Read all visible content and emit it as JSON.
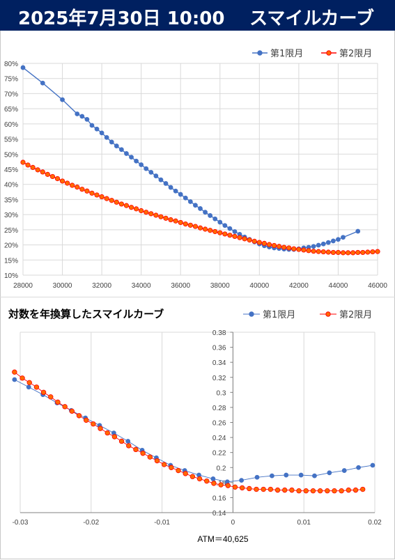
{
  "header": {
    "date": "2025年7月30日 10:00",
    "title": "スマイルカーブ"
  },
  "colors": {
    "header_bg": "#002060",
    "series1": "#4472C4",
    "series2": "#FF0000",
    "series2_fill": "#FF6A00",
    "grid": "#D9D9D9"
  },
  "chart_data": [
    {
      "type": "line",
      "title": "",
      "xlabel": "",
      "ylabel": "",
      "xlim": [
        28000,
        46000
      ],
      "ylim": [
        0.1,
        0.8
      ],
      "x_ticks": [
        28000,
        30000,
        32000,
        34000,
        36000,
        38000,
        40000,
        42000,
        44000,
        46000
      ],
      "y_ticks": [
        "10%",
        "15%",
        "20%",
        "25%",
        "30%",
        "35%",
        "40%",
        "45%",
        "50%",
        "55%",
        "60%",
        "65%",
        "70%",
        "75%",
        "80%"
      ],
      "grid": true,
      "legend": "top-right",
      "series": [
        {
          "name": "第1限月",
          "points": [
            [
              28000,
              0.786
            ],
            [
              29000,
              0.735
            ],
            [
              30000,
              0.68
            ],
            [
              30750,
              0.633
            ],
            [
              31000,
              0.625
            ],
            [
              31250,
              0.615
            ],
            [
              31500,
              0.595
            ],
            [
              31750,
              0.583
            ],
            [
              32000,
              0.57
            ],
            [
              32250,
              0.555
            ],
            [
              32500,
              0.54
            ],
            [
              32750,
              0.527
            ],
            [
              33000,
              0.515
            ],
            [
              33250,
              0.502
            ],
            [
              33500,
              0.49
            ],
            [
              33750,
              0.477
            ],
            [
              34000,
              0.465
            ],
            [
              34250,
              0.452
            ],
            [
              34500,
              0.44
            ],
            [
              34750,
              0.428
            ],
            [
              35000,
              0.415
            ],
            [
              35250,
              0.403
            ],
            [
              35500,
              0.39
            ],
            [
              35750,
              0.378
            ],
            [
              36000,
              0.367
            ],
            [
              36250,
              0.355
            ],
            [
              36500,
              0.343
            ],
            [
              36750,
              0.331
            ],
            [
              37000,
              0.32
            ],
            [
              37250,
              0.308
            ],
            [
              37500,
              0.297
            ],
            [
              37750,
              0.286
            ],
            [
              38000,
              0.275
            ],
            [
              38250,
              0.264
            ],
            [
              38500,
              0.254
            ],
            [
              38750,
              0.244
            ],
            [
              39000,
              0.235
            ],
            [
              39250,
              0.226
            ],
            [
              39500,
              0.218
            ],
            [
              39750,
              0.21
            ],
            [
              40000,
              0.203
            ],
            [
              40250,
              0.197
            ],
            [
              40500,
              0.193
            ],
            [
              40750,
              0.19
            ],
            [
              41000,
              0.188
            ],
            [
              41250,
              0.186
            ],
            [
              41500,
              0.185
            ],
            [
              41750,
              0.185
            ],
            [
              42000,
              0.187
            ],
            [
              42250,
              0.19
            ],
            [
              42500,
              0.192
            ],
            [
              42750,
              0.195
            ],
            [
              43000,
              0.199
            ],
            [
              43250,
              0.203
            ],
            [
              43500,
              0.208
            ],
            [
              43750,
              0.213
            ],
            [
              44000,
              0.218
            ],
            [
              44250,
              0.225
            ],
            [
              45000,
              0.245
            ]
          ]
        },
        {
          "name": "第2限月",
          "points": [
            [
              28000,
              0.473
            ],
            [
              28250,
              0.464
            ],
            [
              28500,
              0.456
            ],
            [
              28750,
              0.448
            ],
            [
              29000,
              0.441
            ],
            [
              29250,
              0.433
            ],
            [
              29500,
              0.426
            ],
            [
              29750,
              0.419
            ],
            [
              30000,
              0.411
            ],
            [
              30250,
              0.404
            ],
            [
              30500,
              0.397
            ],
            [
              30750,
              0.391
            ],
            [
              31000,
              0.384
            ],
            [
              31250,
              0.378
            ],
            [
              31500,
              0.371
            ],
            [
              31750,
              0.365
            ],
            [
              32000,
              0.359
            ],
            [
              32250,
              0.353
            ],
            [
              32500,
              0.347
            ],
            [
              32750,
              0.341
            ],
            [
              33000,
              0.335
            ],
            [
              33250,
              0.33
            ],
            [
              33500,
              0.324
            ],
            [
              33750,
              0.319
            ],
            [
              34000,
              0.313
            ],
            [
              34250,
              0.308
            ],
            [
              34500,
              0.303
            ],
            [
              34750,
              0.298
            ],
            [
              35000,
              0.293
            ],
            [
              35250,
              0.288
            ],
            [
              35500,
              0.283
            ],
            [
              35750,
              0.279
            ],
            [
              36000,
              0.274
            ],
            [
              36250,
              0.269
            ],
            [
              36500,
              0.265
            ],
            [
              36750,
              0.261
            ],
            [
              37000,
              0.256
            ],
            [
              37250,
              0.252
            ],
            [
              37500,
              0.248
            ],
            [
              37750,
              0.244
            ],
            [
              38000,
              0.24
            ],
            [
              38250,
              0.236
            ],
            [
              38500,
              0.232
            ],
            [
              38750,
              0.228
            ],
            [
              39000,
              0.224
            ],
            [
              39250,
              0.22
            ],
            [
              39500,
              0.216
            ],
            [
              39750,
              0.212
            ],
            [
              40000,
              0.208
            ],
            [
              40250,
              0.205
            ],
            [
              40500,
              0.201
            ],
            [
              40750,
              0.198
            ],
            [
              41000,
              0.195
            ],
            [
              41250,
              0.192
            ],
            [
              41500,
              0.19
            ],
            [
              41750,
              0.187
            ],
            [
              42000,
              0.185
            ],
            [
              42250,
              0.183
            ],
            [
              42500,
              0.181
            ],
            [
              42750,
              0.179
            ],
            [
              43000,
              0.178
            ],
            [
              43250,
              0.177
            ],
            [
              43500,
              0.176
            ],
            [
              43750,
              0.175
            ],
            [
              44000,
              0.175
            ],
            [
              44250,
              0.174
            ],
            [
              44500,
              0.174
            ],
            [
              44750,
              0.174
            ],
            [
              45000,
              0.175
            ],
            [
              45250,
              0.175
            ],
            [
              45500,
              0.176
            ],
            [
              45750,
              0.177
            ],
            [
              46000,
              0.178
            ]
          ]
        }
      ]
    },
    {
      "type": "scatter",
      "title": "対数を年換算したスマイルカーブ",
      "xlabel": "",
      "ylabel": "",
      "xlim": [
        -0.03,
        0.02
      ],
      "ylim": [
        0.14,
        0.38
      ],
      "x_ticks": [
        "-0.03",
        "-0.02",
        "-0.01",
        "0",
        "0.01",
        "0.02"
      ],
      "y_ticks": [
        "0.14",
        "0.16",
        "0.18",
        "0.2",
        "0.22",
        "0.24",
        "0.26",
        "0.28",
        "0.3",
        "0.32",
        "0.34",
        "0.36",
        "0.38"
      ],
      "grid": true,
      "legend": "top-right",
      "annotation": "ATM＝40,625",
      "series": [
        {
          "name": "第1限月",
          "points": [
            [
              -0.0308,
              0.317
            ],
            [
              -0.0288,
              0.307
            ],
            [
              -0.0268,
              0.297
            ],
            [
              -0.0248,
              0.286
            ],
            [
              -0.0228,
              0.276
            ],
            [
              -0.0208,
              0.266
            ],
            [
              -0.0188,
              0.256
            ],
            [
              -0.0168,
              0.246
            ],
            [
              -0.0148,
              0.235
            ],
            [
              -0.0128,
              0.223
            ],
            [
              -0.0108,
              0.213
            ],
            [
              -0.0088,
              0.203
            ],
            [
              -0.0068,
              0.196
            ],
            [
              -0.0048,
              0.19
            ],
            [
              -0.0028,
              0.185
            ],
            [
              -0.0008,
              0.181
            ],
            [
              0.0012,
              0.183
            ],
            [
              0.0034,
              0.187
            ],
            [
              0.0055,
              0.189
            ],
            [
              0.0075,
              0.19
            ],
            [
              0.0096,
              0.19
            ],
            [
              0.0115,
              0.189
            ],
            [
              0.0136,
              0.193
            ],
            [
              0.0157,
              0.196
            ],
            [
              0.0177,
              0.2
            ],
            [
              0.0197,
              0.203
            ]
          ]
        },
        {
          "name": "第2限月",
          "points": [
            [
              -0.0308,
              0.327
            ],
            [
              -0.0297,
              0.319
            ],
            [
              -0.0287,
              0.313
            ],
            [
              -0.0277,
              0.307
            ],
            [
              -0.0267,
              0.3
            ],
            [
              -0.0257,
              0.294
            ],
            [
              -0.0247,
              0.287
            ],
            [
              -0.0237,
              0.281
            ],
            [
              -0.0227,
              0.275
            ],
            [
              -0.0217,
              0.269
            ],
            [
              -0.0207,
              0.263
            ],
            [
              -0.0197,
              0.258
            ],
            [
              -0.0187,
              0.252
            ],
            [
              -0.0177,
              0.246
            ],
            [
              -0.0167,
              0.241
            ],
            [
              -0.0157,
              0.235
            ],
            [
              -0.0147,
              0.229
            ],
            [
              -0.0137,
              0.224
            ],
            [
              -0.0127,
              0.219
            ],
            [
              -0.0117,
              0.214
            ],
            [
              -0.0107,
              0.209
            ],
            [
              -0.0097,
              0.204
            ],
            [
              -0.0087,
              0.2
            ],
            [
              -0.0077,
              0.196
            ],
            [
              -0.0067,
              0.192
            ],
            [
              -0.0057,
              0.188
            ],
            [
              -0.0047,
              0.185
            ],
            [
              -0.0037,
              0.182
            ],
            [
              -0.0027,
              0.179
            ],
            [
              -0.0017,
              0.177
            ],
            [
              -0.0007,
              0.176
            ],
            [
              0.0003,
              0.174
            ],
            [
              0.0013,
              0.173
            ],
            [
              0.0023,
              0.172
            ],
            [
              0.0033,
              0.171
            ],
            [
              0.0043,
              0.171
            ],
            [
              0.0053,
              0.171
            ],
            [
              0.0063,
              0.17
            ],
            [
              0.0073,
              0.17
            ],
            [
              0.0083,
              0.17
            ],
            [
              0.0093,
              0.169
            ],
            [
              0.0103,
              0.169
            ],
            [
              0.0113,
              0.169
            ],
            [
              0.0123,
              0.169
            ],
            [
              0.0133,
              0.169
            ],
            [
              0.0143,
              0.169
            ],
            [
              0.0153,
              0.169
            ],
            [
              0.0163,
              0.17
            ],
            [
              0.0173,
              0.17
            ],
            [
              0.0183,
              0.171
            ]
          ]
        }
      ]
    }
  ]
}
